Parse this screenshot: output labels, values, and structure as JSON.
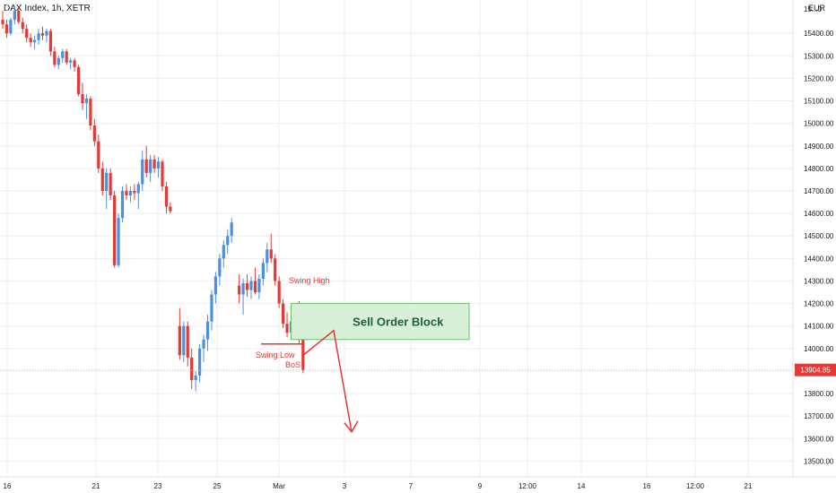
{
  "header": {
    "title": "DAX Index, 1h, XETR",
    "currency": "EUR"
  },
  "colors": {
    "up": "#4a90e2",
    "down": "#e53935",
    "zone_fill": "#d8f0d8",
    "zone_stroke": "#6abf6a",
    "grid": "#eeeeee"
  },
  "chart_data": {
    "type": "candlestick",
    "y_axis": {
      "ticks": [
        "15400.00",
        "15300.00",
        "15200.00",
        "15100.00",
        "15000.00",
        "14900.00",
        "14800.00",
        "14700.00",
        "14600.00",
        "14500.00",
        "14400.00",
        "14300.00",
        "14200.00",
        "14100.00",
        "14000.00",
        "13900.00",
        "13800.00",
        "13700.00",
        "13600.00",
        "13500.00"
      ],
      "top_label": "15...0",
      "ylim": [
        13450,
        15530
      ]
    },
    "x_axis": {
      "ticks": [
        "16",
        "21",
        "23",
        "25",
        "Mar",
        "3",
        "7",
        "9",
        "12:00",
        "14",
        "16",
        "12:00",
        "21"
      ]
    },
    "last_price": "13904.85",
    "candles": [
      [
        15460,
        15500,
        15420,
        15440
      ],
      [
        15440,
        15460,
        15380,
        15400
      ],
      [
        15400,
        15470,
        15390,
        15460
      ],
      [
        15460,
        15520,
        15440,
        15500
      ],
      [
        15500,
        15510,
        15440,
        15450
      ],
      [
        15450,
        15470,
        15400,
        15420
      ],
      [
        15420,
        15440,
        15360,
        15380
      ],
      [
        15380,
        15400,
        15340,
        15360
      ],
      [
        15360,
        15390,
        15330,
        15370
      ],
      [
        15370,
        15420,
        15350,
        15400
      ],
      [
        15400,
        15430,
        15370,
        15390
      ],
      [
        15390,
        15420,
        15360,
        15410
      ],
      [
        15410,
        15420,
        15300,
        15320
      ],
      [
        15320,
        15340,
        15250,
        15260
      ],
      [
        15260,
        15300,
        15240,
        15290
      ],
      [
        15290,
        15330,
        15270,
        15320
      ],
      [
        15320,
        15330,
        15260,
        15270
      ],
      [
        15270,
        15290,
        15240,
        15280
      ],
      [
        15280,
        15290,
        15230,
        15250
      ],
      [
        15250,
        15260,
        15120,
        15130
      ],
      [
        15130,
        15180,
        15060,
        15090
      ],
      [
        15090,
        15130,
        15020,
        15110
      ],
      [
        15110,
        15120,
        14970,
        14990
      ],
      [
        14990,
        15020,
        14900,
        14920
      ],
      [
        14920,
        14950,
        14780,
        14800
      ],
      [
        14800,
        14830,
        14680,
        14700
      ],
      [
        14700,
        14800,
        14620,
        14780
      ],
      [
        14780,
        14800,
        14660,
        14680
      ],
      [
        14680,
        14700,
        14360,
        14370
      ],
      [
        14370,
        14600,
        14360,
        14580
      ],
      [
        14580,
        14720,
        14560,
        14700
      ],
      [
        14700,
        14730,
        14660,
        14680
      ],
      [
        14680,
        14720,
        14650,
        14700
      ],
      [
        14700,
        14730,
        14660,
        14690
      ],
      [
        14690,
        14740,
        14620,
        14730
      ],
      [
        14730,
        14880,
        14700,
        14840
      ],
      [
        14840,
        14900,
        14760,
        14780
      ],
      [
        14780,
        14860,
        14740,
        14840
      ],
      [
        14840,
        14860,
        14780,
        14800
      ],
      [
        14800,
        14850,
        14760,
        14830
      ],
      [
        14830,
        14840,
        14700,
        14720
      ],
      [
        14720,
        14740,
        14600,
        14630
      ],
      [
        14630,
        14650,
        14600,
        14610
      ],
      [
        14100,
        14180,
        13950,
        13970
      ],
      [
        13970,
        14120,
        13940,
        14100
      ],
      [
        14100,
        14120,
        13920,
        13960
      ],
      [
        13960,
        14000,
        13820,
        13860
      ],
      [
        13860,
        13900,
        13810,
        13880
      ],
      [
        13880,
        14020,
        13850,
        14000
      ],
      [
        14000,
        14060,
        13940,
        14040
      ],
      [
        14040,
        14150,
        13990,
        14120
      ],
      [
        14120,
        14260,
        14080,
        14240
      ],
      [
        14240,
        14340,
        14200,
        14320
      ],
      [
        14320,
        14420,
        14280,
        14400
      ],
      [
        14400,
        14480,
        14360,
        14460
      ],
      [
        14460,
        14530,
        14420,
        14500
      ],
      [
        14500,
        14580,
        14470,
        14560
      ],
      [
        14280,
        14330,
        14200,
        14240
      ],
      [
        14240,
        14310,
        14150,
        14290
      ],
      [
        14290,
        14330,
        14230,
        14260
      ],
      [
        14260,
        14320,
        14220,
        14300
      ],
      [
        14300,
        14360,
        14240,
        14250
      ],
      [
        14250,
        14330,
        14220,
        14310
      ],
      [
        14310,
        14400,
        14280,
        14380
      ],
      [
        14380,
        14470,
        14340,
        14440
      ],
      [
        14440,
        14510,
        14380,
        14400
      ],
      [
        14400,
        14420,
        14280,
        14300
      ],
      [
        14300,
        14320,
        14180,
        14200
      ],
      [
        14200,
        14220,
        14090,
        14110
      ],
      [
        14110,
        14160,
        14050,
        14070
      ],
      [
        14070,
        14130,
        14040,
        14120
      ],
      [
        14120,
        14200,
        14070,
        14180
      ],
      [
        14180,
        14210,
        14020,
        14040
      ],
      [
        14040,
        14060,
        13890,
        13905
      ]
    ],
    "annotations": {
      "swing_high": "Swing High",
      "swing_low": "Swing Low",
      "bos": "BoS",
      "zone_label": "Sell Order Block",
      "zone_top": 14200,
      "zone_bottom": 14040,
      "projection": [
        [
          14020,
          13970
        ],
        [
          14090,
          14080
        ],
        [
          14240,
          13630
        ]
      ]
    }
  }
}
